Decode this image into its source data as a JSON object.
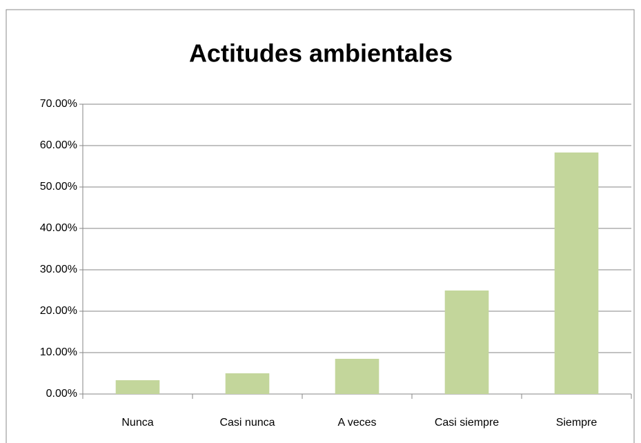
{
  "chart_data": {
    "type": "bar",
    "title": "Actitudes ambientales",
    "categories": [
      "Nunca",
      "Casi nunca",
      "A veces",
      "Casi siempre",
      "Siempre"
    ],
    "values": [
      3.33,
      5,
      8.5,
      25,
      58.33
    ],
    "color": "#c3d69b",
    "ylim": [
      0,
      70
    ],
    "yticks": [
      {
        "value": 0,
        "label": "0.00%"
      },
      {
        "value": 10,
        "label": "10.00%"
      },
      {
        "value": 20,
        "label": "20.00%"
      },
      {
        "value": 30,
        "label": "30.00%"
      },
      {
        "value": 40,
        "label": "40.00%"
      },
      {
        "value": 50,
        "label": "50.00%"
      },
      {
        "value": 60,
        "label": "60.00%"
      },
      {
        "value": 70,
        "label": "70.00%"
      }
    ],
    "grid": true
  }
}
